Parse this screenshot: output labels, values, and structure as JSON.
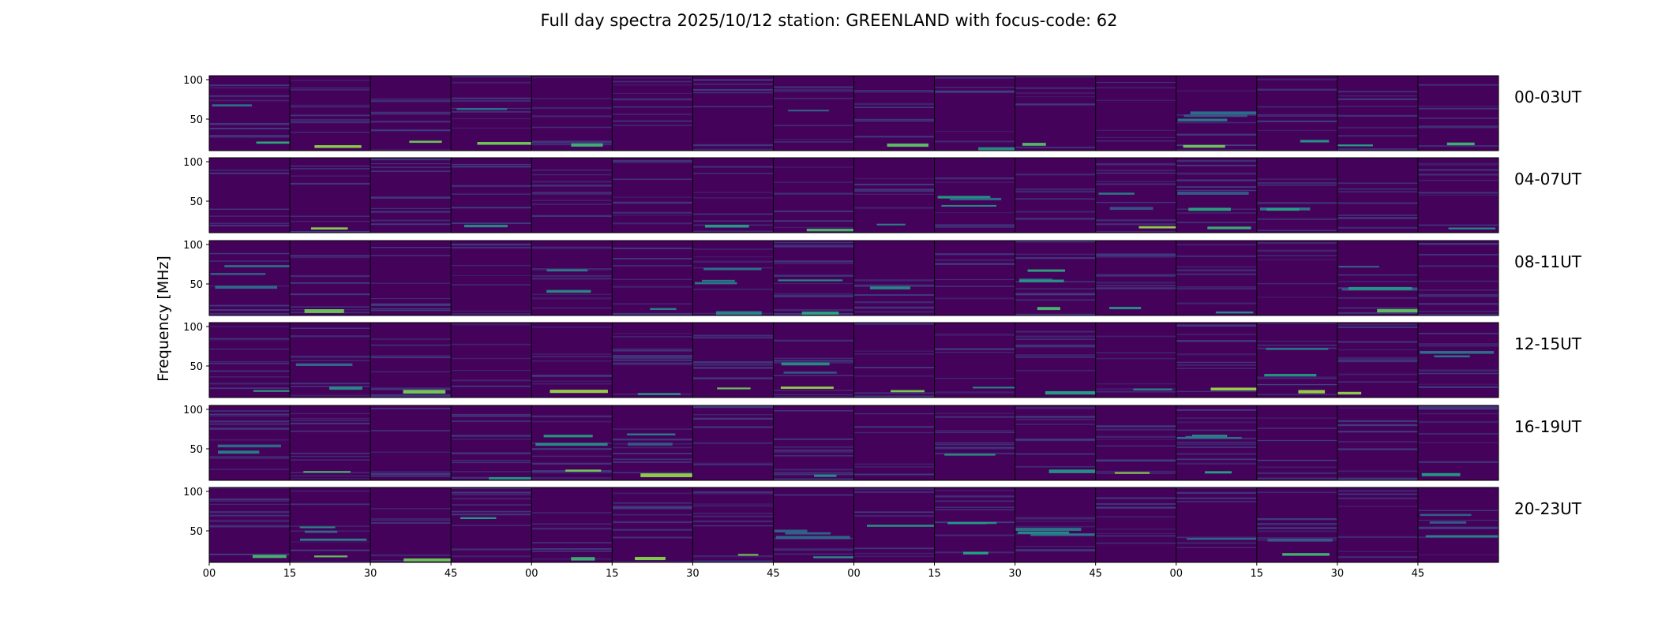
{
  "chart_data": {
    "type": "heatmap",
    "title": "Full day spectra 2025/10/12 station: GREENLAND with focus-code: 62",
    "ylabel": "Frequency [MHz]",
    "xlabel": "",
    "ylim": [
      10,
      105
    ],
    "y_ticks": [
      100,
      50
    ],
    "x_tick_labels": [
      "00",
      "15",
      "30",
      "45",
      "00",
      "15",
      "30",
      "45",
      "00",
      "15",
      "30",
      "45",
      "00",
      "15",
      "30",
      "45"
    ],
    "rows": [
      {
        "label": "00-03UT",
        "panels": 16
      },
      {
        "label": "04-07UT",
        "panels": 16
      },
      {
        "label": "08-11UT",
        "panels": 16
      },
      {
        "label": "12-15UT",
        "panels": 16
      },
      {
        "label": "16-19UT",
        "panels": 16
      },
      {
        "label": "20-23UT",
        "panels": 16
      }
    ],
    "panel_minutes": 15,
    "colormap": "viridis",
    "colors": {
      "background": "#44025a",
      "band_low": "#3b528b",
      "band_high": "#5ec962",
      "frame": "#000000"
    }
  }
}
